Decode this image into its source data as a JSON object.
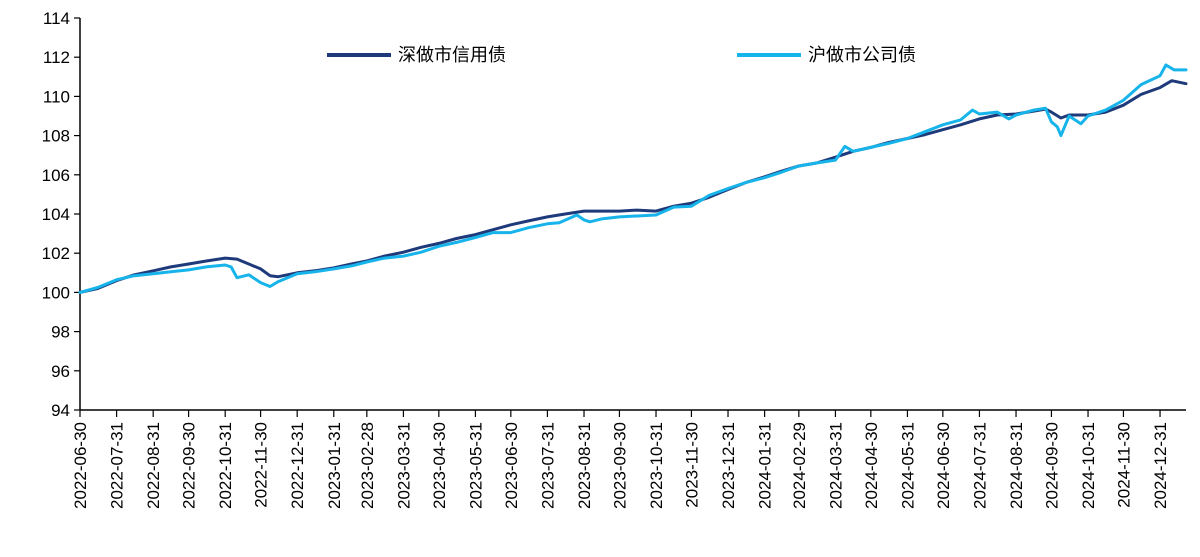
{
  "chart_data": {
    "type": "line",
    "title": "",
    "xlabel": "",
    "ylabel": "",
    "ylim": [
      94,
      114
    ],
    "yticks": [
      94,
      96,
      98,
      100,
      102,
      104,
      106,
      108,
      110,
      112,
      114
    ],
    "xlim": [
      "2022-06-30",
      "2025-01-22"
    ],
    "xticks": [
      "2022-06-30",
      "2022-07-31",
      "2022-08-31",
      "2022-09-30",
      "2022-10-31",
      "2022-11-30",
      "2022-12-31",
      "2023-01-31",
      "2023-02-28",
      "2023-03-31",
      "2023-04-30",
      "2023-05-31",
      "2023-06-30",
      "2023-07-31",
      "2023-08-31",
      "2023-09-30",
      "2023-10-31",
      "2023-11-30",
      "2023-12-31",
      "2024-01-31",
      "2024-02-29",
      "2024-03-31",
      "2024-04-30",
      "2024-05-31",
      "2024-06-30",
      "2024-07-31",
      "2024-08-31",
      "2024-09-30",
      "2024-10-31",
      "2024-11-30",
      "2024-12-31"
    ],
    "grid": false,
    "legend_position": "top",
    "series": [
      {
        "name": "深做市信用债",
        "color": "#1f3a7a",
        "x": [
          "2022-06-30",
          "2022-07-15",
          "2022-07-31",
          "2022-08-15",
          "2022-08-31",
          "2022-09-15",
          "2022-09-30",
          "2022-10-15",
          "2022-10-31",
          "2022-11-10",
          "2022-11-20",
          "2022-11-30",
          "2022-12-08",
          "2022-12-15",
          "2022-12-31",
          "2023-01-15",
          "2023-01-31",
          "2023-02-15",
          "2023-02-28",
          "2023-03-15",
          "2023-03-31",
          "2023-04-15",
          "2023-04-30",
          "2023-05-15",
          "2023-05-31",
          "2023-06-15",
          "2023-06-30",
          "2023-07-15",
          "2023-07-31",
          "2023-08-15",
          "2023-08-31",
          "2023-09-15",
          "2023-09-30",
          "2023-10-15",
          "2023-10-31",
          "2023-11-15",
          "2023-11-30",
          "2023-12-15",
          "2023-12-31",
          "2024-01-15",
          "2024-01-31",
          "2024-02-15",
          "2024-02-29",
          "2024-03-15",
          "2024-03-31",
          "2024-04-15",
          "2024-04-30",
          "2024-05-15",
          "2024-05-31",
          "2024-06-15",
          "2024-06-30",
          "2024-07-15",
          "2024-07-31",
          "2024-08-15",
          "2024-08-31",
          "2024-09-15",
          "2024-09-25",
          "2024-09-30",
          "2024-10-08",
          "2024-10-15",
          "2024-10-31",
          "2024-11-15",
          "2024-11-30",
          "2024-12-15",
          "2024-12-31",
          "2025-01-10",
          "2025-01-22"
        ],
        "values": [
          100.0,
          100.2,
          100.6,
          100.9,
          101.1,
          101.3,
          101.45,
          101.6,
          101.75,
          101.7,
          101.45,
          101.2,
          100.85,
          100.8,
          101.0,
          101.1,
          101.25,
          101.45,
          101.6,
          101.85,
          102.05,
          102.3,
          102.5,
          102.75,
          102.95,
          103.2,
          103.45,
          103.65,
          103.85,
          104.0,
          104.15,
          104.15,
          104.15,
          104.2,
          104.15,
          104.4,
          104.55,
          104.85,
          105.25,
          105.6,
          105.9,
          106.2,
          106.45,
          106.6,
          106.9,
          107.2,
          107.4,
          107.65,
          107.85,
          108.05,
          108.3,
          108.55,
          108.85,
          109.05,
          109.1,
          109.25,
          109.35,
          109.2,
          108.9,
          109.05,
          109.05,
          109.2,
          109.55,
          110.1,
          110.45,
          110.8,
          110.65
        ]
      },
      {
        "name": "沪做市公司债",
        "color": "#16b4ea",
        "x": [
          "2022-06-30",
          "2022-07-15",
          "2022-07-31",
          "2022-08-15",
          "2022-08-31",
          "2022-09-15",
          "2022-09-30",
          "2022-10-15",
          "2022-10-31",
          "2022-11-05",
          "2022-11-10",
          "2022-11-20",
          "2022-11-30",
          "2022-12-08",
          "2022-12-15",
          "2022-12-31",
          "2023-01-15",
          "2023-01-31",
          "2023-02-15",
          "2023-02-28",
          "2023-03-15",
          "2023-03-31",
          "2023-04-15",
          "2023-04-30",
          "2023-05-15",
          "2023-05-31",
          "2023-06-15",
          "2023-06-30",
          "2023-07-15",
          "2023-07-31",
          "2023-08-10",
          "2023-08-25",
          "2023-08-31",
          "2023-09-05",
          "2023-09-15",
          "2023-09-30",
          "2023-10-15",
          "2023-10-31",
          "2023-11-15",
          "2023-11-30",
          "2023-12-15",
          "2023-12-31",
          "2024-01-15",
          "2024-01-31",
          "2024-02-15",
          "2024-02-29",
          "2024-03-15",
          "2024-03-31",
          "2024-04-08",
          "2024-04-15",
          "2024-04-30",
          "2024-05-15",
          "2024-05-31",
          "2024-06-15",
          "2024-06-30",
          "2024-07-15",
          "2024-07-25",
          "2024-07-31",
          "2024-08-15",
          "2024-08-25",
          "2024-08-31",
          "2024-09-15",
          "2024-09-25",
          "2024-09-30",
          "2024-10-05",
          "2024-10-08",
          "2024-10-15",
          "2024-10-25",
          "2024-10-31",
          "2024-11-15",
          "2024-11-30",
          "2024-12-15",
          "2024-12-31",
          "2025-01-05",
          "2025-01-12",
          "2025-01-22"
        ],
        "values": [
          100.0,
          100.25,
          100.65,
          100.85,
          100.95,
          101.05,
          101.15,
          101.3,
          101.4,
          101.3,
          100.75,
          100.9,
          100.5,
          100.3,
          100.55,
          100.95,
          101.05,
          101.2,
          101.35,
          101.55,
          101.75,
          101.85,
          102.05,
          102.35,
          102.55,
          102.8,
          103.05,
          103.05,
          103.3,
          103.5,
          103.55,
          103.95,
          103.7,
          103.6,
          103.75,
          103.85,
          103.9,
          103.95,
          104.35,
          104.4,
          104.95,
          105.3,
          105.6,
          105.85,
          106.15,
          106.45,
          106.6,
          106.75,
          107.45,
          107.2,
          107.4,
          107.6,
          107.85,
          108.2,
          108.55,
          108.8,
          109.3,
          109.1,
          109.2,
          108.85,
          109.05,
          109.3,
          109.4,
          108.7,
          108.45,
          108.0,
          109.0,
          108.6,
          109.0,
          109.3,
          109.8,
          110.6,
          111.05,
          111.6,
          111.35,
          111.35
        ]
      }
    ]
  }
}
